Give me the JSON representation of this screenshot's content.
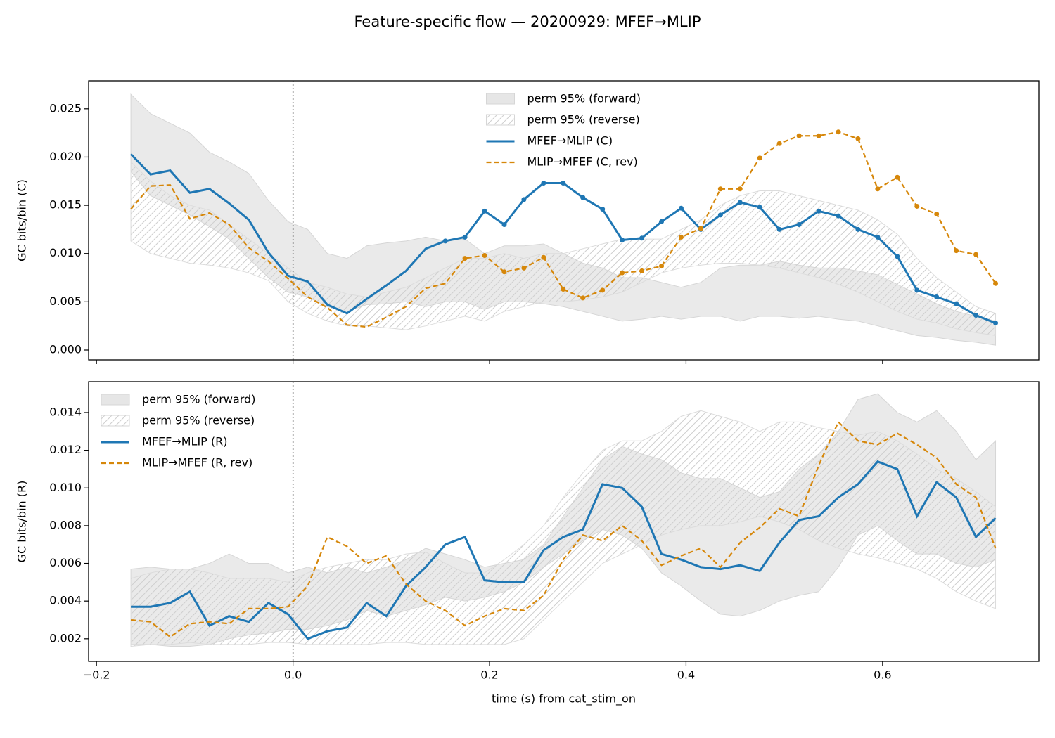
{
  "title": "Feature-specific flow — 20200929: MFEF→MLIP",
  "chart_data": [
    {
      "type": "line",
      "ylabel": "GC bits/bin (C)",
      "legend": "upper center",
      "vline": 0,
      "xticklabels": false,
      "xlim": [
        -0.208,
        0.759
      ],
      "ylim": [
        -0.00102,
        0.0279
      ],
      "xticks": [
        {
          "value": -0.2,
          "label": "−0.2"
        },
        {
          "value": 0,
          "label": "0.0"
        },
        0.2,
        0.4,
        0.6
      ],
      "yticks": [
        {
          "value": 0,
          "label": "0.000"
        },
        0.005,
        {
          "value": 0.01,
          "label": "0.010"
        },
        0.015,
        {
          "value": 0.02,
          "label": "0.020"
        },
        0.025
      ],
      "x": [
        -0.165,
        -0.145,
        -0.125,
        -0.105,
        -0.085,
        -0.065,
        -0.045,
        -0.025,
        -0.005,
        0.015,
        0.035,
        0.055,
        0.075,
        0.095,
        0.115,
        0.135,
        0.155,
        0.175,
        0.195,
        0.215,
        0.235,
        0.255,
        0.275,
        0.295,
        0.315,
        0.335,
        0.355,
        0.375,
        0.395,
        0.415,
        0.435,
        0.455,
        0.475,
        0.495,
        0.515,
        0.535,
        0.555,
        0.575,
        0.595,
        0.615,
        0.635,
        0.655,
        0.675,
        0.695,
        0.715
      ],
      "bands": [
        {
          "name": "perm 95% (forward)",
          "color": "#e6e6e6",
          "hatch": false,
          "upper": [
            0.0265,
            0.0245,
            0.0235,
            0.0225,
            0.0205,
            0.0195,
            0.0183,
            0.0155,
            0.0133,
            0.0125,
            0.01,
            0.0095,
            0.0108,
            0.0111,
            0.0113,
            0.0117,
            0.0113,
            0.0115,
            0.01,
            0.0108,
            0.0108,
            0.011,
            0.01,
            0.009,
            0.0085,
            0.0075,
            0.0075,
            0.007,
            0.0065,
            0.007,
            0.0085,
            0.0088,
            0.0088,
            0.0092,
            0.0088,
            0.0085,
            0.0085,
            0.0082,
            0.0078,
            0.0068,
            0.0058,
            0.0048,
            0.004,
            0.0035,
            0.003
          ],
          "lower": [
            0.0185,
            0.016,
            0.015,
            0.014,
            0.0128,
            0.0115,
            0.0095,
            0.0075,
            0.006,
            0.0055,
            0.0045,
            0.004,
            0.0047,
            0.0048,
            0.005,
            0.0045,
            0.005,
            0.005,
            0.0042,
            0.005,
            0.005,
            0.0048,
            0.0045,
            0.004,
            0.0035,
            0.003,
            0.0032,
            0.0035,
            0.0032,
            0.0035,
            0.0035,
            0.003,
            0.0035,
            0.0035,
            0.0033,
            0.0035,
            0.0032,
            0.003,
            0.0025,
            0.002,
            0.0015,
            0.0013,
            0.001,
            0.0008,
            0.0005
          ]
        },
        {
          "name": "perm 95% (reverse)",
          "color": "#ffffff",
          "hatch": true,
          "upper": [
            0.0195,
            0.0175,
            0.016,
            0.015,
            0.0145,
            0.013,
            0.0115,
            0.01,
            0.0085,
            0.007,
            0.0065,
            0.0058,
            0.0055,
            0.006,
            0.0065,
            0.0075,
            0.0085,
            0.0095,
            0.0095,
            0.01,
            0.0095,
            0.01,
            0.01,
            0.0105,
            0.011,
            0.0115,
            0.0115,
            0.0115,
            0.0125,
            0.0135,
            0.015,
            0.016,
            0.0165,
            0.0165,
            0.016,
            0.0155,
            0.015,
            0.0145,
            0.0135,
            0.012,
            0.0095,
            0.0075,
            0.006,
            0.0045,
            0.0038
          ],
          "lower": [
            0.0113,
            0.01,
            0.0095,
            0.009,
            0.0088,
            0.0085,
            0.008,
            0.0072,
            0.005,
            0.0038,
            0.003,
            0.0025,
            0.0025,
            0.0023,
            0.0021,
            0.0025,
            0.003,
            0.0035,
            0.003,
            0.004,
            0.0045,
            0.005,
            0.005,
            0.0052,
            0.0055,
            0.006,
            0.007,
            0.008,
            0.0085,
            0.0088,
            0.009,
            0.009,
            0.0088,
            0.0085,
            0.008,
            0.0075,
            0.0068,
            0.006,
            0.005,
            0.004,
            0.0032,
            0.0028,
            0.0022,
            0.0018,
            0.0015
          ]
        }
      ],
      "series": [
        {
          "name": "MFEF→MLIP (C)",
          "color": "#1f77b4",
          "dashed": false,
          "marker_start": 16,
          "values": [
            0.0203,
            0.0182,
            0.0186,
            0.0163,
            0.0167,
            0.0152,
            0.0135,
            0.0101,
            0.0077,
            0.0071,
            0.0047,
            0.0038,
            0.0053,
            0.0067,
            0.0082,
            0.0105,
            0.0113,
            0.0117,
            0.0144,
            0.013,
            0.0156,
            0.0173,
            0.0173,
            0.0158,
            0.0146,
            0.0114,
            0.0116,
            0.0133,
            0.0147,
            0.0125,
            0.014,
            0.0153,
            0.0148,
            0.0125,
            0.013,
            0.0144,
            0.0139,
            0.0125,
            0.0117,
            0.0097,
            0.0062,
            0.0055,
            0.0048,
            0.0036,
            0.0028
          ]
        },
        {
          "name": "MLIP→MFEF (C, rev)",
          "color": "#d6870a",
          "dashed": true,
          "marker_start": 17,
          "values": [
            0.0146,
            0.017,
            0.0171,
            0.0136,
            0.0142,
            0.013,
            0.0106,
            0.0092,
            0.0074,
            0.0055,
            0.0044,
            0.0026,
            0.0024,
            0.0034,
            0.0045,
            0.0064,
            0.0069,
            0.0095,
            0.0098,
            0.0081,
            0.0085,
            0.0096,
            0.0063,
            0.0054,
            0.0062,
            0.008,
            0.0082,
            0.0087,
            0.0117,
            0.0126,
            0.0167,
            0.0167,
            0.0199,
            0.0214,
            0.0222,
            0.0222,
            0.0226,
            0.0219,
            0.0167,
            0.0179,
            0.0149,
            0.0141,
            0.0103,
            0.0099,
            0.0069
          ]
        }
      ]
    },
    {
      "type": "line",
      "ylabel": "GC bits/bin (R)",
      "xlabel": "time (s) from cat_stim_on",
      "legend": "upper left",
      "vline": 0,
      "xticklabels": true,
      "xlim": [
        -0.208,
        0.759
      ],
      "ylim": [
        0.0008,
        0.01564
      ],
      "xticks": [
        {
          "value": -0.2,
          "label": "−0.2"
        },
        {
          "value": 0,
          "label": "0.0"
        },
        0.2,
        0.4,
        0.6
      ],
      "yticks": [
        0.002,
        0.004,
        0.006,
        0.008,
        {
          "value": 0.01,
          "label": "0.010"
        },
        0.012,
        0.014
      ],
      "x": [
        -0.165,
        -0.145,
        -0.125,
        -0.105,
        -0.085,
        -0.065,
        -0.045,
        -0.025,
        -0.005,
        0.015,
        0.035,
        0.055,
        0.075,
        0.095,
        0.115,
        0.135,
        0.155,
        0.175,
        0.195,
        0.215,
        0.235,
        0.255,
        0.275,
        0.295,
        0.315,
        0.335,
        0.355,
        0.375,
        0.395,
        0.415,
        0.435,
        0.455,
        0.475,
        0.495,
        0.515,
        0.535,
        0.555,
        0.575,
        0.595,
        0.615,
        0.635,
        0.655,
        0.675,
        0.695,
        0.715
      ],
      "bands": [
        {
          "name": "perm 95% (forward)",
          "color": "#e6e6e6",
          "hatch": false,
          "upper": [
            0.0057,
            0.0058,
            0.0057,
            0.0057,
            0.006,
            0.0065,
            0.006,
            0.006,
            0.0055,
            0.0058,
            0.0055,
            0.0058,
            0.0055,
            0.0058,
            0.0062,
            0.0068,
            0.0065,
            0.0062,
            0.0058,
            0.006,
            0.0062,
            0.007,
            0.0085,
            0.01,
            0.0115,
            0.0122,
            0.0118,
            0.0115,
            0.0108,
            0.0105,
            0.0105,
            0.01,
            0.0095,
            0.0098,
            0.011,
            0.0118,
            0.013,
            0.0147,
            0.015,
            0.014,
            0.0135,
            0.0141,
            0.013,
            0.0115,
            0.0125
          ],
          "lower": [
            0.0017,
            0.0017,
            0.0016,
            0.0016,
            0.0017,
            0.002,
            0.0022,
            0.0023,
            0.0025,
            0.0025,
            0.0027,
            0.003,
            0.0035,
            0.0032,
            0.0035,
            0.0038,
            0.0042,
            0.004,
            0.0042,
            0.0045,
            0.005,
            0.0058,
            0.0065,
            0.0072,
            0.0078,
            0.0075,
            0.0068,
            0.0055,
            0.0048,
            0.004,
            0.0033,
            0.0032,
            0.0035,
            0.004,
            0.0043,
            0.0045,
            0.0058,
            0.0075,
            0.008,
            0.0072,
            0.0065,
            0.0065,
            0.006,
            0.0058,
            0.0062
          ]
        },
        {
          "name": "perm 95% (reverse)",
          "color": "#ffffff",
          "hatch": true,
          "upper": [
            0.0052,
            0.0055,
            0.0057,
            0.0057,
            0.0055,
            0.0052,
            0.0052,
            0.0052,
            0.005,
            0.0055,
            0.0058,
            0.006,
            0.0062,
            0.0062,
            0.0065,
            0.0066,
            0.006,
            0.0055,
            0.0055,
            0.0062,
            0.007,
            0.008,
            0.0095,
            0.0108,
            0.012,
            0.0125,
            0.0125,
            0.013,
            0.0138,
            0.0141,
            0.0138,
            0.0135,
            0.013,
            0.0135,
            0.0135,
            0.0132,
            0.013,
            0.0128,
            0.013,
            0.0125,
            0.0118,
            0.011,
            0.0105,
            0.0098,
            0.009
          ],
          "lower": [
            0.0016,
            0.0017,
            0.0017,
            0.0018,
            0.0017,
            0.0017,
            0.0017,
            0.0018,
            0.0018,
            0.0017,
            0.0017,
            0.0017,
            0.0017,
            0.0018,
            0.0018,
            0.0017,
            0.0017,
            0.0017,
            0.0017,
            0.0017,
            0.002,
            0.003,
            0.004,
            0.005,
            0.006,
            0.0065,
            0.007,
            0.0075,
            0.0078,
            0.008,
            0.008,
            0.0082,
            0.0085,
            0.0082,
            0.0078,
            0.0072,
            0.0068,
            0.0065,
            0.0063,
            0.006,
            0.0057,
            0.0052,
            0.0045,
            0.004,
            0.0036
          ]
        }
      ],
      "series": [
        {
          "name": "MFEF→MLIP (R)",
          "color": "#1f77b4",
          "dashed": false,
          "values": [
            0.0037,
            0.0037,
            0.0039,
            0.0045,
            0.0027,
            0.0032,
            0.0029,
            0.0039,
            0.0033,
            0.002,
            0.0024,
            0.0026,
            0.0039,
            0.0032,
            0.0048,
            0.0058,
            0.007,
            0.0074,
            0.0051,
            0.005,
            0.005,
            0.0067,
            0.0074,
            0.0078,
            0.0102,
            0.01,
            0.009,
            0.0065,
            0.0062,
            0.0058,
            0.0057,
            0.0059,
            0.0056,
            0.0071,
            0.0083,
            0.0085,
            0.0095,
            0.0102,
            0.0114,
            0.011,
            0.0085,
            0.0103,
            0.0095,
            0.0074,
            0.0084
          ]
        },
        {
          "name": "MLIP→MFEF (R, rev)",
          "color": "#d6870a",
          "dashed": true,
          "values": [
            0.003,
            0.0029,
            0.0021,
            0.0028,
            0.0029,
            0.0028,
            0.0036,
            0.0036,
            0.0037,
            0.0048,
            0.0074,
            0.0069,
            0.006,
            0.0064,
            0.0049,
            0.004,
            0.0035,
            0.0027,
            0.0032,
            0.0036,
            0.0035,
            0.0043,
            0.0062,
            0.0075,
            0.0072,
            0.008,
            0.0072,
            0.0059,
            0.0064,
            0.0068,
            0.0058,
            0.0071,
            0.0079,
            0.0089,
            0.0085,
            0.0112,
            0.0135,
            0.0125,
            0.0123,
            0.0129,
            0.0123,
            0.0116,
            0.0102,
            0.0095,
            0.0068
          ]
        }
      ]
    }
  ]
}
